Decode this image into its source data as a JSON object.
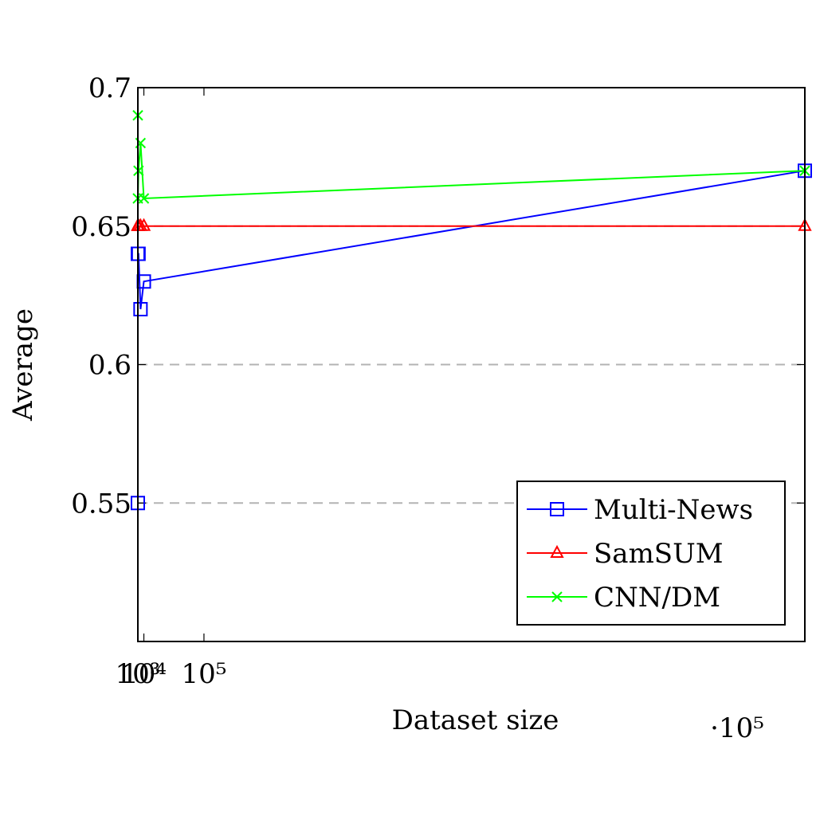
{
  "chart_data": {
    "type": "line",
    "xlabel": "Dataset size",
    "ylabel": "Average",
    "x_multiplier_label": "·10⁵",
    "xlim": [
      1000,
      1000000
    ],
    "ylim": [
      0.5,
      0.7
    ],
    "x_ticks": [
      {
        "value": 1000,
        "label": "10³"
      },
      {
        "value": 10000,
        "label": "10⁴"
      },
      {
        "value": 100000,
        "label": "10⁵"
      }
    ],
    "y_ticks": [
      {
        "value": 0.55,
        "label": "0.55"
      },
      {
        "value": 0.6,
        "label": "0.6"
      },
      {
        "value": 0.65,
        "label": "0.65"
      },
      {
        "value": 0.7,
        "label": "0.7"
      }
    ],
    "grid": "horizontal dashed",
    "legend_position": "bottom-right",
    "series": [
      {
        "name": "Multi-News",
        "color": "#0000ff",
        "marker": "square",
        "points": [
          [
            1000,
            0.55
          ],
          [
            1000,
            0.64
          ],
          [
            2000,
            0.64
          ],
          [
            5000,
            0.62
          ],
          [
            10000,
            0.63
          ],
          [
            1000000,
            0.67
          ]
        ]
      },
      {
        "name": "SamSUM",
        "color": "#ff0000",
        "marker": "triangle",
        "points": [
          [
            1000,
            0.65
          ],
          [
            1000,
            0.65
          ],
          [
            2000,
            0.65
          ],
          [
            5000,
            0.65
          ],
          [
            10000,
            0.65
          ],
          [
            1000000,
            0.65
          ]
        ]
      },
      {
        "name": "CNN/DM",
        "color": "#00ff00",
        "marker": "cross",
        "points": [
          [
            1000,
            0.69
          ],
          [
            1000,
            0.66
          ],
          [
            2000,
            0.67
          ],
          [
            5000,
            0.68
          ],
          [
            10000,
            0.66
          ],
          [
            1000000,
            0.67
          ]
        ]
      }
    ]
  }
}
